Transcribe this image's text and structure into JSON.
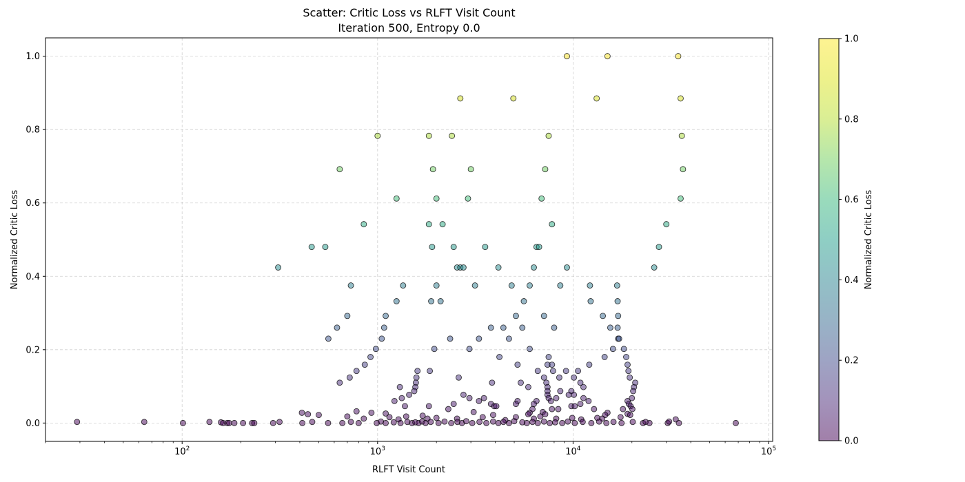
{
  "chart_data": {
    "type": "scatter",
    "title": "Scatter: Critic Loss vs RLFT Visit Count",
    "subtitle": "Iteration 500, Entropy 0.0",
    "xlabel": "RLFT Visit Count",
    "ylabel": "Normalized Critic Loss",
    "x_scale": "log",
    "xlim": [
      20,
      105000
    ],
    "ylim": [
      -0.05,
      1.05
    ],
    "x_ticks": [
      100,
      1000,
      10000,
      100000
    ],
    "x_tick_labels": [
      "10^2",
      "10^3",
      "10^4",
      "10^5"
    ],
    "y_ticks": [
      0.0,
      0.2,
      0.4,
      0.6,
      0.8,
      1.0
    ],
    "y_tick_labels": [
      "0.0",
      "0.2",
      "0.4",
      "0.6",
      "0.8",
      "1.0"
    ],
    "grid": true,
    "legend": "none",
    "colorbar": {
      "label": "Normalized Critic Loss",
      "range": [
        0.0,
        1.0
      ],
      "ticks": [
        0.0,
        0.2,
        0.4,
        0.6,
        0.8,
        1.0
      ],
      "tick_labels": [
        "0.0",
        "0.2",
        "0.4",
        "0.6",
        "0.8",
        "1.0"
      ],
      "colormap": "viridis"
    },
    "marker_alpha": 0.5,
    "point_color_source": "y",
    "points": [
      {
        "x": 9300,
        "y": 1.0
      },
      {
        "x": 15000,
        "y": 1.0
      },
      {
        "x": 34500,
        "y": 1.0
      },
      {
        "x": 2650,
        "y": 0.885
      },
      {
        "x": 4950,
        "y": 0.885
      },
      {
        "x": 13200,
        "y": 0.885
      },
      {
        "x": 35500,
        "y": 0.885
      },
      {
        "x": 1000,
        "y": 0.783
      },
      {
        "x": 1830,
        "y": 0.783
      },
      {
        "x": 2400,
        "y": 0.783
      },
      {
        "x": 7500,
        "y": 0.783
      },
      {
        "x": 36000,
        "y": 0.783
      },
      {
        "x": 640,
        "y": 0.692
      },
      {
        "x": 1920,
        "y": 0.692
      },
      {
        "x": 3000,
        "y": 0.692
      },
      {
        "x": 7200,
        "y": 0.692
      },
      {
        "x": 36500,
        "y": 0.692
      },
      {
        "x": 1250,
        "y": 0.612
      },
      {
        "x": 2000,
        "y": 0.612
      },
      {
        "x": 2900,
        "y": 0.612
      },
      {
        "x": 6900,
        "y": 0.612
      },
      {
        "x": 35500,
        "y": 0.612
      },
      {
        "x": 850,
        "y": 0.542
      },
      {
        "x": 1830,
        "y": 0.542
      },
      {
        "x": 2150,
        "y": 0.542
      },
      {
        "x": 7800,
        "y": 0.542
      },
      {
        "x": 30000,
        "y": 0.542
      },
      {
        "x": 460,
        "y": 0.48
      },
      {
        "x": 540,
        "y": 0.48
      },
      {
        "x": 1900,
        "y": 0.48
      },
      {
        "x": 2450,
        "y": 0.48
      },
      {
        "x": 3550,
        "y": 0.48
      },
      {
        "x": 6500,
        "y": 0.48
      },
      {
        "x": 6700,
        "y": 0.48
      },
      {
        "x": 27500,
        "y": 0.48
      },
      {
        "x": 310,
        "y": 0.424
      },
      {
        "x": 2550,
        "y": 0.424
      },
      {
        "x": 2650,
        "y": 0.424
      },
      {
        "x": 2750,
        "y": 0.424
      },
      {
        "x": 4150,
        "y": 0.424
      },
      {
        "x": 6300,
        "y": 0.424
      },
      {
        "x": 9300,
        "y": 0.424
      },
      {
        "x": 26000,
        "y": 0.424
      },
      {
        "x": 730,
        "y": 0.375
      },
      {
        "x": 1350,
        "y": 0.375
      },
      {
        "x": 2000,
        "y": 0.375
      },
      {
        "x": 3150,
        "y": 0.375
      },
      {
        "x": 4850,
        "y": 0.375
      },
      {
        "x": 6000,
        "y": 0.375
      },
      {
        "x": 8600,
        "y": 0.375
      },
      {
        "x": 12200,
        "y": 0.375
      },
      {
        "x": 16800,
        "y": 0.375
      },
      {
        "x": 1250,
        "y": 0.332
      },
      {
        "x": 1880,
        "y": 0.332
      },
      {
        "x": 2100,
        "y": 0.332
      },
      {
        "x": 5600,
        "y": 0.332
      },
      {
        "x": 12300,
        "y": 0.332
      },
      {
        "x": 16900,
        "y": 0.332
      },
      {
        "x": 700,
        "y": 0.292
      },
      {
        "x": 1100,
        "y": 0.292
      },
      {
        "x": 5100,
        "y": 0.292
      },
      {
        "x": 7100,
        "y": 0.292
      },
      {
        "x": 14200,
        "y": 0.292
      },
      {
        "x": 17000,
        "y": 0.292
      },
      {
        "x": 620,
        "y": 0.26
      },
      {
        "x": 1080,
        "y": 0.26
      },
      {
        "x": 3800,
        "y": 0.26
      },
      {
        "x": 4400,
        "y": 0.26
      },
      {
        "x": 5500,
        "y": 0.26
      },
      {
        "x": 8000,
        "y": 0.26
      },
      {
        "x": 15500,
        "y": 0.26
      },
      {
        "x": 16900,
        "y": 0.26
      },
      {
        "x": 560,
        "y": 0.23
      },
      {
        "x": 1050,
        "y": 0.23
      },
      {
        "x": 2350,
        "y": 0.23
      },
      {
        "x": 3300,
        "y": 0.23
      },
      {
        "x": 4700,
        "y": 0.23
      },
      {
        "x": 17000,
        "y": 0.23
      },
      {
        "x": 17200,
        "y": 0.23
      },
      {
        "x": 980,
        "y": 0.202
      },
      {
        "x": 1950,
        "y": 0.202
      },
      {
        "x": 2950,
        "y": 0.202
      },
      {
        "x": 6000,
        "y": 0.202
      },
      {
        "x": 16000,
        "y": 0.202
      },
      {
        "x": 18200,
        "y": 0.202
      },
      {
        "x": 920,
        "y": 0.18
      },
      {
        "x": 4200,
        "y": 0.18
      },
      {
        "x": 7500,
        "y": 0.18
      },
      {
        "x": 14500,
        "y": 0.18
      },
      {
        "x": 18700,
        "y": 0.18
      },
      {
        "x": 860,
        "y": 0.159
      },
      {
        "x": 5200,
        "y": 0.159
      },
      {
        "x": 7400,
        "y": 0.159
      },
      {
        "x": 7800,
        "y": 0.159
      },
      {
        "x": 12100,
        "y": 0.159
      },
      {
        "x": 19000,
        "y": 0.159
      },
      {
        "x": 780,
        "y": 0.142
      },
      {
        "x": 1600,
        "y": 0.142
      },
      {
        "x": 1850,
        "y": 0.142
      },
      {
        "x": 6600,
        "y": 0.142
      },
      {
        "x": 7900,
        "y": 0.142
      },
      {
        "x": 9200,
        "y": 0.142
      },
      {
        "x": 10600,
        "y": 0.142
      },
      {
        "x": 19200,
        "y": 0.142
      },
      {
        "x": 720,
        "y": 0.124
      },
      {
        "x": 1580,
        "y": 0.124
      },
      {
        "x": 2600,
        "y": 0.124
      },
      {
        "x": 7100,
        "y": 0.124
      },
      {
        "x": 8500,
        "y": 0.124
      },
      {
        "x": 10100,
        "y": 0.124
      },
      {
        "x": 19500,
        "y": 0.124
      },
      {
        "x": 640,
        "y": 0.11
      },
      {
        "x": 1570,
        "y": 0.11
      },
      {
        "x": 3850,
        "y": 0.11
      },
      {
        "x": 5400,
        "y": 0.11
      },
      {
        "x": 7300,
        "y": 0.11
      },
      {
        "x": 10900,
        "y": 0.11
      },
      {
        "x": 20800,
        "y": 0.11
      },
      {
        "x": 1300,
        "y": 0.098
      },
      {
        "x": 1560,
        "y": 0.098
      },
      {
        "x": 5900,
        "y": 0.098
      },
      {
        "x": 7400,
        "y": 0.098
      },
      {
        "x": 11300,
        "y": 0.098
      },
      {
        "x": 20500,
        "y": 0.098
      },
      {
        "x": 1540,
        "y": 0.087
      },
      {
        "x": 7400,
        "y": 0.087
      },
      {
        "x": 8600,
        "y": 0.087
      },
      {
        "x": 9800,
        "y": 0.087
      },
      {
        "x": 20300,
        "y": 0.087
      },
      {
        "x": 1450,
        "y": 0.077
      },
      {
        "x": 2750,
        "y": 0.077
      },
      {
        "x": 7400,
        "y": 0.077
      },
      {
        "x": 9500,
        "y": 0.077
      },
      {
        "x": 10100,
        "y": 0.077
      },
      {
        "x": 1330,
        "y": 0.068
      },
      {
        "x": 2950,
        "y": 0.068
      },
      {
        "x": 3500,
        "y": 0.068
      },
      {
        "x": 7500,
        "y": 0.068
      },
      {
        "x": 8200,
        "y": 0.068
      },
      {
        "x": 11300,
        "y": 0.068
      },
      {
        "x": 20000,
        "y": 0.068
      },
      {
        "x": 1220,
        "y": 0.06
      },
      {
        "x": 3300,
        "y": 0.06
      },
      {
        "x": 5200,
        "y": 0.06
      },
      {
        "x": 6500,
        "y": 0.06
      },
      {
        "x": 7700,
        "y": 0.06
      },
      {
        "x": 12000,
        "y": 0.06
      },
      {
        "x": 19000,
        "y": 0.06
      },
      {
        "x": 2450,
        "y": 0.052
      },
      {
        "x": 3800,
        "y": 0.052
      },
      {
        "x": 5100,
        "y": 0.052
      },
      {
        "x": 6300,
        "y": 0.052
      },
      {
        "x": 10900,
        "y": 0.052
      },
      {
        "x": 19300,
        "y": 0.052
      },
      {
        "x": 1380,
        "y": 0.046
      },
      {
        "x": 1830,
        "y": 0.046
      },
      {
        "x": 3950,
        "y": 0.046
      },
      {
        "x": 4050,
        "y": 0.046
      },
      {
        "x": 9800,
        "y": 0.046
      },
      {
        "x": 10200,
        "y": 0.046
      },
      {
        "x": 19700,
        "y": 0.046
      },
      {
        "x": 2300,
        "y": 0.038
      },
      {
        "x": 6200,
        "y": 0.038
      },
      {
        "x": 7800,
        "y": 0.038
      },
      {
        "x": 8400,
        "y": 0.038
      },
      {
        "x": 12800,
        "y": 0.038
      },
      {
        "x": 18000,
        "y": 0.038
      },
      {
        "x": 20100,
        "y": 0.038
      },
      {
        "x": 410,
        "y": 0.028
      },
      {
        "x": 780,
        "y": 0.032
      },
      {
        "x": 1100,
        "y": 0.026
      },
      {
        "x": 3100,
        "y": 0.03
      },
      {
        "x": 6000,
        "y": 0.028
      },
      {
        "x": 7000,
        "y": 0.03
      },
      {
        "x": 15000,
        "y": 0.028
      },
      {
        "x": 19000,
        "y": 0.025
      },
      {
        "x": 440,
        "y": 0.024
      },
      {
        "x": 500,
        "y": 0.022
      },
      {
        "x": 930,
        "y": 0.028
      },
      {
        "x": 1700,
        "y": 0.02
      },
      {
        "x": 3900,
        "y": 0.022
      },
      {
        "x": 5900,
        "y": 0.024
      },
      {
        "x": 7200,
        "y": 0.024
      },
      {
        "x": 14600,
        "y": 0.022
      },
      {
        "x": 19600,
        "y": 0.022
      },
      {
        "x": 700,
        "y": 0.018
      },
      {
        "x": 1150,
        "y": 0.016
      },
      {
        "x": 1400,
        "y": 0.018
      },
      {
        "x": 2000,
        "y": 0.014
      },
      {
        "x": 3450,
        "y": 0.016
      },
      {
        "x": 5100,
        "y": 0.016
      },
      {
        "x": 6800,
        "y": 0.018
      },
      {
        "x": 9900,
        "y": 0.014
      },
      {
        "x": 13300,
        "y": 0.014
      },
      {
        "x": 17500,
        "y": 0.016
      },
      {
        "x": 850,
        "y": 0.012
      },
      {
        "x": 1280,
        "y": 0.01
      },
      {
        "x": 1800,
        "y": 0.012
      },
      {
        "x": 2550,
        "y": 0.012
      },
      {
        "x": 4500,
        "y": 0.008
      },
      {
        "x": 6300,
        "y": 0.012
      },
      {
        "x": 8200,
        "y": 0.012
      },
      {
        "x": 11000,
        "y": 0.01
      },
      {
        "x": 14100,
        "y": 0.012
      },
      {
        "x": 33500,
        "y": 0.01
      },
      {
        "x": 29,
        "y": 0.003
      },
      {
        "x": 64,
        "y": 0.003
      },
      {
        "x": 101,
        "y": 0.0
      },
      {
        "x": 138,
        "y": 0.003
      },
      {
        "x": 158,
        "y": 0.002
      },
      {
        "x": 162,
        "y": 0.0
      },
      {
        "x": 170,
        "y": 0.0
      },
      {
        "x": 174,
        "y": 0.0
      },
      {
        "x": 185,
        "y": 0.0
      },
      {
        "x": 205,
        "y": 0.0
      },
      {
        "x": 228,
        "y": 0.0
      },
      {
        "x": 234,
        "y": 0.0
      },
      {
        "x": 292,
        "y": 0.0
      },
      {
        "x": 315,
        "y": 0.003
      },
      {
        "x": 412,
        "y": 0.0
      },
      {
        "x": 463,
        "y": 0.003
      },
      {
        "x": 558,
        "y": 0.0
      },
      {
        "x": 660,
        "y": 0.0
      },
      {
        "x": 730,
        "y": 0.003
      },
      {
        "x": 800,
        "y": 0.0
      },
      {
        "x": 990,
        "y": 0.0
      },
      {
        "x": 1040,
        "y": 0.004
      },
      {
        "x": 1100,
        "y": 0.0
      },
      {
        "x": 1210,
        "y": 0.002
      },
      {
        "x": 1310,
        "y": 0.0
      },
      {
        "x": 1420,
        "y": 0.003
      },
      {
        "x": 1500,
        "y": 0.0
      },
      {
        "x": 1560,
        "y": 0.002
      },
      {
        "x": 1620,
        "y": 0.0
      },
      {
        "x": 1690,
        "y": 0.004
      },
      {
        "x": 1760,
        "y": 0.0
      },
      {
        "x": 1870,
        "y": 0.003
      },
      {
        "x": 2050,
        "y": 0.0
      },
      {
        "x": 2200,
        "y": 0.004
      },
      {
        "x": 2380,
        "y": 0.0
      },
      {
        "x": 2560,
        "y": 0.003
      },
      {
        "x": 2700,
        "y": 0.0
      },
      {
        "x": 2840,
        "y": 0.005
      },
      {
        "x": 3050,
        "y": 0.0
      },
      {
        "x": 3320,
        "y": 0.003
      },
      {
        "x": 3600,
        "y": 0.0
      },
      {
        "x": 3900,
        "y": 0.004
      },
      {
        "x": 4150,
        "y": 0.0
      },
      {
        "x": 4400,
        "y": 0.003
      },
      {
        "x": 4700,
        "y": 0.0
      },
      {
        "x": 5000,
        "y": 0.005
      },
      {
        "x": 5500,
        "y": 0.002
      },
      {
        "x": 5800,
        "y": 0.0
      },
      {
        "x": 6200,
        "y": 0.003
      },
      {
        "x": 6600,
        "y": 0.0
      },
      {
        "x": 7100,
        "y": 0.004
      },
      {
        "x": 7600,
        "y": 0.0
      },
      {
        "x": 8100,
        "y": 0.002
      },
      {
        "x": 8800,
        "y": 0.0
      },
      {
        "x": 9400,
        "y": 0.004
      },
      {
        "x": 10200,
        "y": 0.0
      },
      {
        "x": 11200,
        "y": 0.003
      },
      {
        "x": 12400,
        "y": 0.0
      },
      {
        "x": 13600,
        "y": 0.004
      },
      {
        "x": 14800,
        "y": 0.0
      },
      {
        "x": 16100,
        "y": 0.003
      },
      {
        "x": 17700,
        "y": 0.0
      },
      {
        "x": 20200,
        "y": 0.003
      },
      {
        "x": 22800,
        "y": 0.0
      },
      {
        "x": 23500,
        "y": 0.003
      },
      {
        "x": 24600,
        "y": 0.0
      },
      {
        "x": 30500,
        "y": 0.0
      },
      {
        "x": 31000,
        "y": 0.004
      },
      {
        "x": 34800,
        "y": 0.0
      },
      {
        "x": 68000,
        "y": 0.0
      }
    ]
  }
}
